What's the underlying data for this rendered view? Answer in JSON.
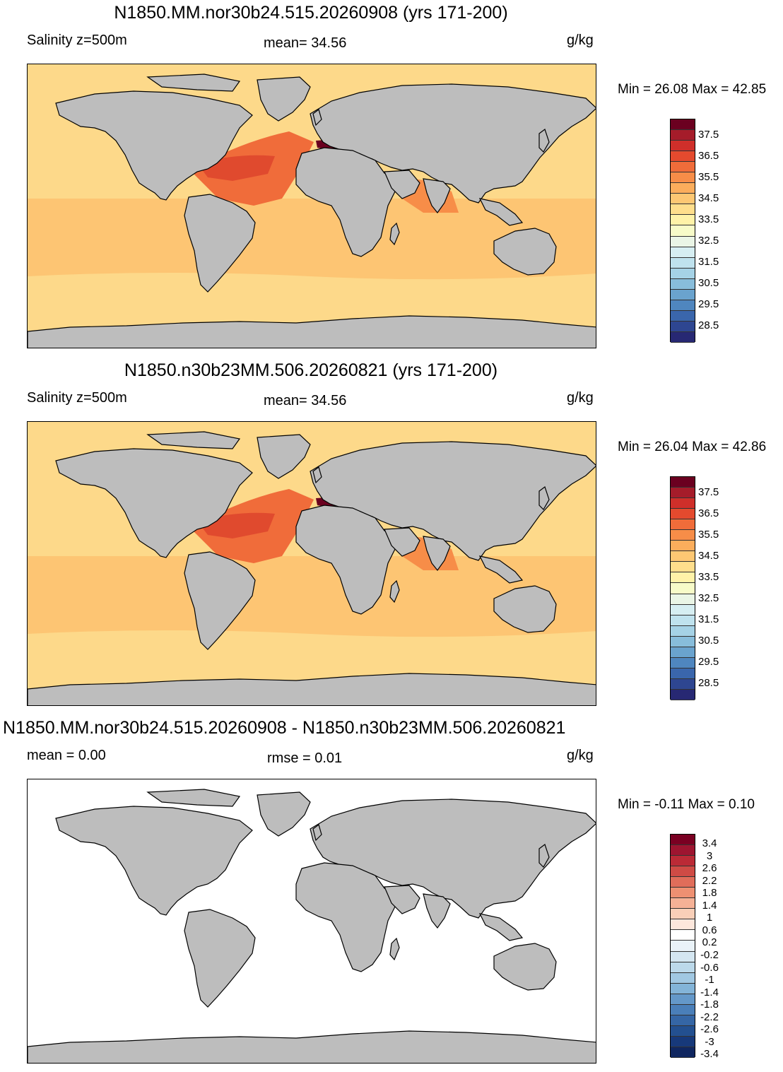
{
  "panels": [
    {
      "title": "N1850.MM.nor30b24.515.20260908 (yrs 171-200)",
      "label_left": "Salinity z=500m",
      "label_mid": "mean=  34.56",
      "units": "g/kg",
      "minmax": "Min =  26.08 Max =  42.85",
      "variant": "field"
    },
    {
      "title": "N1850.n30b23MM.506.20260821 (yrs 171-200)",
      "label_left": "Salinity z=500m",
      "label_mid": "mean=  34.56",
      "units": "g/kg",
      "minmax": "Min =  26.04 Max =  42.86",
      "variant": "field"
    },
    {
      "title": "N1850.MM.nor30b24.515.20260908 - N1850.n30b23MM.506.20260821",
      "label_left": "mean =   0.00",
      "label_mid": "rmse =   0.01",
      "units": "g/kg",
      "minmax": "Min =  -0.11 Max =   0.10",
      "variant": "diff"
    }
  ],
  "colorbars": {
    "field": {
      "colors": [
        "#6b0020",
        "#a51c2a",
        "#cf2f2a",
        "#e44a2e",
        "#f06c3a",
        "#f78d48",
        "#fbad5c",
        "#fdc773",
        "#ffde8c",
        "#fff2a8",
        "#f7fbc8",
        "#eaf5e6",
        "#d6eef2",
        "#bfe2ee",
        "#a5d2e6",
        "#88bddb",
        "#6aa3ce",
        "#4f86bf",
        "#3a66ac",
        "#2e4691",
        "#272873"
      ],
      "labels": [
        "37.5",
        "36.5",
        "35.5",
        "34.5",
        "33.5",
        "32.5",
        "31.5",
        "30.5",
        "29.5",
        "28.5"
      ]
    },
    "diff": {
      "colors": [
        "#7a0022",
        "#9e1530",
        "#bb2a36",
        "#cf4b45",
        "#e06d5a",
        "#ee9072",
        "#f5b196",
        "#f9cfb8",
        "#fde7dc",
        "#ffffff",
        "#e9f2f8",
        "#d4e6f1",
        "#bcd9ea",
        "#a1c8e2",
        "#83b4d8",
        "#6498c9",
        "#4a7fb9",
        "#3566a5",
        "#235090",
        "#17397a",
        "#0f2660"
      ],
      "labels": [
        "3.4",
        "3",
        "2.6",
        "2.2",
        "1.8",
        "1.4",
        "1",
        "0.6",
        "0.2",
        "-0.2",
        "-0.6",
        "-1",
        "-1.4",
        "-1.8",
        "-2.2",
        "-2.6",
        "-3",
        "-3.4"
      ]
    }
  },
  "colors": {
    "land": "#bdbdbd",
    "ocean_base": "#fdd98a",
    "ocean_mid": "#fdc573",
    "atlantic_high": "#f06c3a",
    "atlantic_core": "#e04a2e",
    "med": "#6b0020",
    "diff_ocean": "#ffffff"
  }
}
